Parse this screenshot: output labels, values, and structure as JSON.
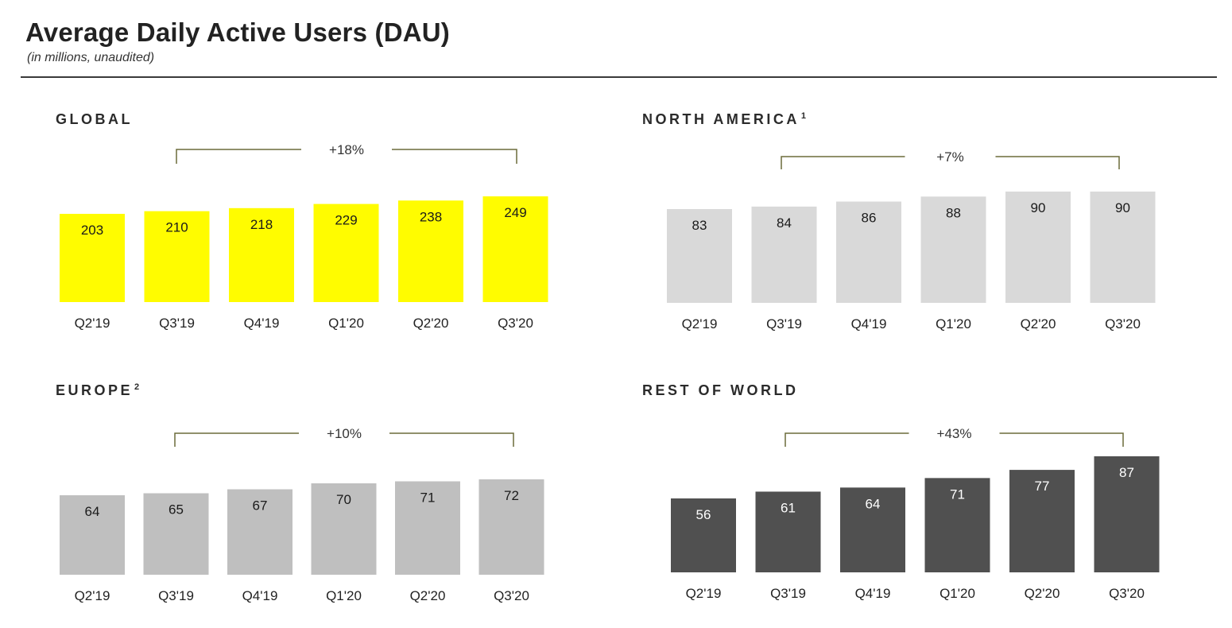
{
  "header": {
    "title": "Average Daily Active Users (DAU)",
    "subtitle": "(in millions, unaudited)"
  },
  "chart_data": [
    {
      "type": "bar",
      "title": "GLOBAL",
      "footnote": "",
      "categories": [
        "Q2'19",
        "Q3'19",
        "Q4'19",
        "Q1'20",
        "Q2'20",
        "Q3'20"
      ],
      "values": [
        203,
        210,
        218,
        229,
        238,
        249
      ],
      "data_labels": [
        "203",
        "210",
        "218",
        "229",
        "238",
        "249"
      ],
      "growth_annotation": "+18%",
      "color": "#FFFC00",
      "label_style": "dark-text"
    },
    {
      "type": "bar",
      "title": "NORTH AMERICA",
      "footnote": "1",
      "categories": [
        "Q2'19",
        "Q3'19",
        "Q4'19",
        "Q1'20",
        "Q2'20",
        "Q3'20"
      ],
      "values": [
        83,
        84,
        86,
        88,
        90,
        90
      ],
      "data_labels": [
        "83",
        "84",
        "86",
        "88",
        "90",
        "90"
      ],
      "growth_annotation": "+7%",
      "color": "#D9D9D9",
      "label_style": "dark-text"
    },
    {
      "type": "bar",
      "title": "EUROPE",
      "footnote": "2",
      "categories": [
        "Q2'19",
        "Q3'19",
        "Q4'19",
        "Q1'20",
        "Q2'20",
        "Q3'20"
      ],
      "values": [
        64,
        65,
        67,
        70,
        71,
        72
      ],
      "data_labels": [
        "64",
        "65",
        "67",
        "70",
        "71",
        "72"
      ],
      "growth_annotation": "+10%",
      "color": "#BFBFBF",
      "label_style": "dark-text"
    },
    {
      "type": "bar",
      "title": "REST OF WORLD",
      "footnote": "",
      "categories": [
        "Q2'19",
        "Q3'19",
        "Q4'19",
        "Q1'20",
        "Q2'20",
        "Q3'20"
      ],
      "values": [
        56,
        61,
        64,
        71,
        77,
        87
      ],
      "data_labels": [
        "56",
        "61",
        "64",
        "71",
        "77",
        "87"
      ],
      "growth_annotation": "+43%",
      "color": "#505050",
      "label_style": "light-text"
    }
  ],
  "colors": {
    "bracket": "#6b6b3a",
    "divider": "#3a3a3a"
  }
}
